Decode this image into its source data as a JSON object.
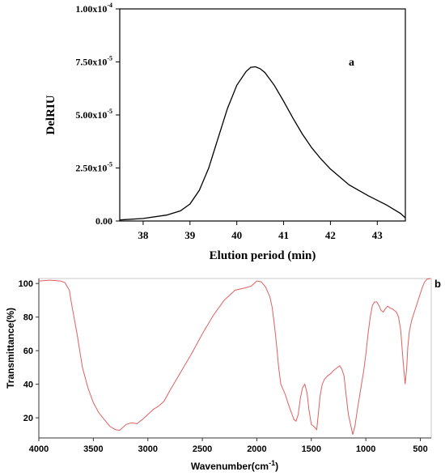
{
  "chart_data": [
    {
      "panel_label": "a",
      "type": "line",
      "xlabel": "Elution period (min)",
      "ylabel": "DelRIU",
      "xlim": [
        37.5,
        43.6
      ],
      "ylim": [
        0,
        0.0001
      ],
      "x_ticks": [
        38,
        39,
        40,
        41,
        42,
        43
      ],
      "x_tick_labels": [
        "38",
        "39",
        "40",
        "41",
        "42",
        "43"
      ],
      "y_ticks": [
        0,
        2.5e-05,
        5e-05,
        7.5e-05,
        0.0001
      ],
      "y_tick_labels": [
        {
          "base": "0.00",
          "exp": ""
        },
        {
          "base": "2.50x10",
          "exp": "-5"
        },
        {
          "base": "5.00x10",
          "exp": "-5"
        },
        {
          "base": "7.50x10",
          "exp": "-5"
        },
        {
          "base": "1.00x10",
          "exp": "-4"
        }
      ],
      "grid": false,
      "line_color": "#000000",
      "x": [
        37.5,
        38.0,
        38.5,
        38.8,
        39.0,
        39.2,
        39.4,
        39.6,
        39.8,
        40.0,
        40.2,
        40.3,
        40.4,
        40.5,
        40.6,
        40.8,
        41.0,
        41.2,
        41.4,
        41.6,
        41.8,
        42.0,
        42.4,
        42.8,
        43.2,
        43.5,
        43.6
      ],
      "y": [
        5e-07,
        1.2e-06,
        2.8e-06,
        4.8e-06,
        8e-06,
        1.45e-05,
        2.5e-05,
        3.9e-05,
        5.3e-05,
        6.4e-05,
        7.05e-05,
        7.25e-05,
        7.27e-05,
        7.18e-05,
        7e-05,
        6.4e-05,
        5.65e-05,
        4.85e-05,
        4.1e-05,
        3.45e-05,
        2.92e-05,
        2.45e-05,
        1.7e-05,
        1.2e-05,
        7.5e-06,
        3.5e-06,
        1.5e-06
      ]
    },
    {
      "panel_label": "b",
      "type": "line",
      "xlabel": "Wavenumber(cm",
      "xlabel_sup": "-1",
      "xlabel_end": ")",
      "ylabel": "Transmittance(%)",
      "xlim": [
        4000,
        400
      ],
      "ylim": [
        8,
        103
      ],
      "x_ticks": [
        4000,
        3500,
        3000,
        2500,
        2000,
        1500,
        1000,
        500
      ],
      "x_tick_labels": [
        "4000",
        "3500",
        "3000",
        "2500",
        "2000",
        "1500",
        "1000",
        "500"
      ],
      "y_ticks": [
        20,
        40,
        60,
        80,
        100
      ],
      "y_tick_labels": [
        "20",
        "40",
        "60",
        "80",
        "100"
      ],
      "grid": false,
      "line_color": "#e06060",
      "x": [
        4000,
        3900,
        3800,
        3760,
        3720,
        3700,
        3650,
        3600,
        3550,
        3500,
        3450,
        3400,
        3350,
        3300,
        3260,
        3200,
        3150,
        3100,
        3050,
        3000,
        2950,
        2900,
        2850,
        2800,
        2700,
        2600,
        2500,
        2400,
        2300,
        2200,
        2100,
        2050,
        2000,
        1960,
        1920,
        1880,
        1860,
        1840,
        1820,
        1800,
        1780,
        1760,
        1740,
        1700,
        1660,
        1640,
        1620,
        1600,
        1580,
        1560,
        1540,
        1520,
        1500,
        1480,
        1450,
        1430,
        1420,
        1400,
        1380,
        1350,
        1320,
        1300,
        1280,
        1260,
        1240,
        1220,
        1200,
        1180,
        1160,
        1140,
        1120,
        1100,
        1080,
        1060,
        1040,
        1020,
        1000,
        980,
        960,
        940,
        920,
        900,
        880,
        860,
        840,
        820,
        800,
        780,
        760,
        740,
        720,
        700,
        680,
        660,
        640,
        625,
        615,
        600,
        580,
        560,
        540,
        520,
        500,
        480,
        460,
        440,
        420,
        405
      ],
      "y": [
        101.5,
        102,
        101.5,
        100.5,
        96,
        88,
        70,
        50,
        38,
        29,
        23,
        19,
        15,
        13,
        12.5,
        16,
        17,
        16.5,
        19,
        22,
        25,
        27,
        30,
        36,
        47,
        58,
        70,
        81,
        90,
        96,
        97.5,
        98.5,
        101.5,
        101,
        98,
        92,
        86,
        76,
        64,
        50,
        40,
        37,
        34,
        26,
        19,
        18,
        22,
        32,
        38,
        40,
        35,
        24,
        16,
        15,
        13,
        26,
        33,
        40,
        43,
        45,
        46.5,
        48,
        49,
        50,
        51,
        49,
        45,
        33,
        22,
        16,
        10,
        15,
        24,
        32,
        40,
        48,
        58,
        70,
        80,
        87,
        89,
        89,
        87,
        84,
        83,
        85,
        86.5,
        85.5,
        85,
        84,
        83,
        80,
        72,
        55,
        40,
        50,
        62,
        72,
        78,
        82,
        86,
        90,
        94,
        98,
        101,
        102.5,
        102.8,
        103
      ]
    }
  ]
}
